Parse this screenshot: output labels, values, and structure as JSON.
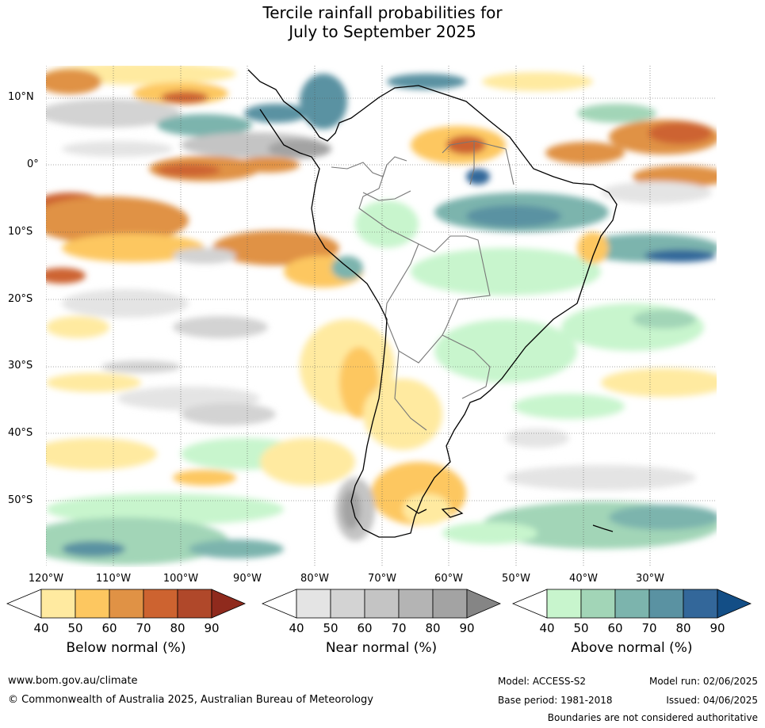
{
  "title": {
    "line1": "Tercile rainfall probabilities for",
    "line2": "July to September 2025"
  },
  "map": {
    "lat_labels": [
      "10°N",
      "0°",
      "10°S",
      "20°S",
      "30°S",
      "40°S",
      "50°S"
    ],
    "lon_labels": [
      "120°W",
      "110°W",
      "100°W",
      "90°W",
      "80°W",
      "70°W",
      "60°W",
      "50°W",
      "40°W",
      "30°W"
    ]
  },
  "colorbars": [
    {
      "label": "Below normal (%)",
      "ticks": [
        "40",
        "50",
        "60",
        "70",
        "80",
        "90"
      ],
      "colors": [
        "#ffeaa0",
        "#fdc760",
        "#e09245",
        "#cd6330",
        "#b0482a",
        "#8f2a1d"
      ]
    },
    {
      "label": "Near normal (%)",
      "ticks": [
        "40",
        "50",
        "60",
        "70",
        "80",
        "90"
      ],
      "colors": [
        "#e4e4e4",
        "#d3d3d3",
        "#c4c4c4",
        "#b4b4b4",
        "#a3a3a3",
        "#858585"
      ]
    },
    {
      "label": "Above normal (%)",
      "ticks": [
        "40",
        "50",
        "60",
        "70",
        "80",
        "90"
      ],
      "colors": [
        "#c8f5cd",
        "#a2d5b7",
        "#7cb4ad",
        "#5a92a2",
        "#33679a",
        "#134e86"
      ]
    }
  ],
  "footer": {
    "website": "www.bom.gov.au/climate",
    "copyright": "© Commonwealth of Australia 2025, Australian Bureau of Meteorology",
    "model": "Model: ACCESS-S2",
    "base_period": "Base period: 1981-2018",
    "model_run": "Model run: 02/06/2025",
    "issued": "Issued: 04/06/2025",
    "disclaimer": "Boundaries are not considered authoritative"
  }
}
